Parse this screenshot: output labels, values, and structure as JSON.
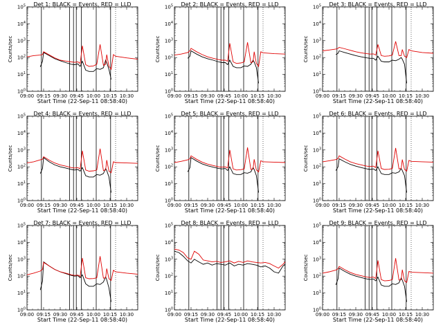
{
  "figure": {
    "x_tick_labels": [
      "09:00",
      "09:15",
      "09:30",
      "09:45",
      "10:00",
      "10:15",
      "10:30"
    ],
    "y_tick_labels": [
      "10^0",
      "10^1",
      "10^2",
      "10^3",
      "10^4",
      "10^5"
    ],
    "xlabel": "Start Time (22-Sep-11 08:58:40)",
    "ylabel": "Counts/sec",
    "series_colors": {
      "events": "#000000",
      "lld": "#e00000"
    }
  },
  "chart_data": [
    {
      "type": "line",
      "title": "Det 1: BLACK = Events, RED = LLD",
      "xlabel": "Start Time (22-Sep-11 08:58:40)",
      "ylabel": "Counts/sec",
      "y_scale": "log",
      "ylim": [
        1,
        100000
      ],
      "x": [
        0,
        6,
        12,
        14,
        15,
        20,
        25,
        30,
        35,
        40,
        43,
        46,
        48,
        50,
        53,
        56,
        60,
        63,
        66,
        69,
        71,
        72,
        74,
        76,
        78,
        80,
        90,
        100
      ],
      "series": [
        {
          "values": [
            null,
            null,
            28,
            60,
            200,
            130,
            85,
            65,
            50,
            40,
            38,
            42,
            30,
            60,
            18,
            15,
            15,
            22,
            20,
            25,
            70,
            50,
            20,
            5,
            null,
            null,
            null,
            null
          ]
        },
        {
          "values": [
            110,
            130,
            140,
            150,
            220,
            145,
            95,
            70,
            62,
            55,
            52,
            55,
            45,
            500,
            38,
            30,
            32,
            40,
            600,
            35,
            40,
            150,
            30,
            20,
            150,
            120,
            95,
            80
          ]
        }
      ]
    },
    {
      "type": "line",
      "title": "Det 2: BLACK = Events, RED = LLD",
      "xlabel": "Start Time (22-Sep-11 08:58:40)",
      "ylabel": "Counts/sec",
      "y_scale": "log",
      "ylim": [
        1,
        100000
      ],
      "x": [
        0,
        6,
        12,
        14,
        15,
        20,
        25,
        30,
        35,
        40,
        43,
        46,
        48,
        50,
        53,
        56,
        60,
        63,
        66,
        69,
        71,
        72,
        74,
        76,
        78,
        80,
        90,
        100
      ],
      "series": [
        {
          "values": [
            null,
            null,
            90,
            120,
            250,
            160,
            110,
            85,
            70,
            55,
            50,
            50,
            38,
            70,
            30,
            25,
            25,
            32,
            30,
            40,
            70,
            55,
            25,
            3,
            null,
            null,
            null,
            null
          ]
        },
        {
          "values": [
            140,
            160,
            200,
            250,
            350,
            220,
            150,
            110,
            90,
            75,
            70,
            70,
            60,
            700,
            55,
            45,
            48,
            55,
            800,
            50,
            55,
            220,
            45,
            30,
            220,
            190,
            170,
            160
          ]
        }
      ]
    },
    {
      "type": "line",
      "title": "Det 3: BLACK = Events, RED = LLD",
      "xlabel": "Start Time (22-Sep-11 08:58:40)",
      "ylabel": "Counts/sec",
      "y_scale": "log",
      "ylim": [
        1,
        100000
      ],
      "x": [
        0,
        6,
        12,
        14,
        15,
        20,
        25,
        30,
        35,
        40,
        43,
        46,
        48,
        50,
        53,
        56,
        60,
        63,
        66,
        69,
        71,
        72,
        74,
        76,
        78,
        80,
        90,
        100
      ],
      "series": [
        {
          "values": [
            null,
            null,
            150,
            180,
            250,
            200,
            160,
            130,
            110,
            95,
            90,
            90,
            70,
            120,
            60,
            55,
            55,
            70,
            65,
            80,
            100,
            80,
            40,
            3,
            null,
            null,
            null,
            null
          ]
        },
        {
          "values": [
            250,
            280,
            320,
            350,
            400,
            330,
            270,
            220,
            190,
            170,
            160,
            165,
            140,
            600,
            130,
            120,
            125,
            140,
            900,
            130,
            130,
            300,
            120,
            100,
            300,
            250,
            200,
            180
          ]
        }
      ]
    },
    {
      "type": "line",
      "title": "Det 4: BLACK = Events, RED = LLD",
      "xlabel": "Start Time (22-Sep-11 08:58:40)",
      "ylabel": "Counts/sec",
      "y_scale": "log",
      "ylim": [
        1,
        100000
      ],
      "x": [
        0,
        6,
        12,
        14,
        15,
        20,
        25,
        30,
        35,
        40,
        43,
        46,
        48,
        50,
        53,
        56,
        60,
        63,
        66,
        69,
        71,
        72,
        74,
        76,
        78,
        80,
        90,
        100
      ],
      "series": [
        {
          "values": [
            null,
            null,
            40,
            80,
            350,
            200,
            130,
            100,
            85,
            70,
            65,
            70,
            55,
            90,
            30,
            25,
            25,
            35,
            32,
            40,
            80,
            60,
            25,
            3,
            null,
            null,
            null,
            null
          ]
        },
        {
          "values": [
            170,
            200,
            260,
            280,
            400,
            250,
            170,
            130,
            110,
            90,
            85,
            90,
            75,
            900,
            65,
            55,
            58,
            65,
            1200,
            60,
            65,
            250,
            55,
            45,
            200,
            180,
            170,
            160
          ]
        }
      ]
    },
    {
      "type": "line",
      "title": "Det 5: BLACK = Events, RED = LLD",
      "xlabel": "Start Time (22-Sep-11 08:58:40)",
      "ylabel": "Counts/sec",
      "y_scale": "log",
      "ylim": [
        1,
        100000
      ],
      "x": [
        0,
        6,
        12,
        14,
        15,
        20,
        25,
        30,
        35,
        40,
        43,
        46,
        48,
        50,
        53,
        56,
        60,
        63,
        66,
        69,
        71,
        72,
        74,
        76,
        78,
        80,
        90,
        100
      ],
      "series": [
        {
          "values": [
            null,
            null,
            50,
            90,
            350,
            220,
            150,
            115,
            95,
            80,
            75,
            80,
            60,
            100,
            40,
            35,
            35,
            45,
            42,
            50,
            90,
            70,
            30,
            3,
            null,
            null,
            null,
            null
          ]
        },
        {
          "values": [
            180,
            210,
            260,
            300,
            450,
            280,
            190,
            145,
            120,
            100,
            95,
            100,
            85,
            1000,
            75,
            65,
            68,
            75,
            1400,
            70,
            75,
            280,
            65,
            50,
            230,
            200,
            190,
            180
          ]
        }
      ]
    },
    {
      "type": "line",
      "title": "Det 6: BLACK = Events, RED = LLD",
      "xlabel": "Start Time (22-Sep-11 08:58:40)",
      "ylabel": "Counts/sec",
      "y_scale": "log",
      "ylim": [
        1,
        100000
      ],
      "x": [
        0,
        6,
        12,
        14,
        15,
        20,
        25,
        30,
        35,
        40,
        43,
        46,
        48,
        50,
        53,
        56,
        60,
        63,
        66,
        69,
        71,
        72,
        74,
        76,
        78,
        80,
        90,
        100
      ],
      "series": [
        {
          "values": [
            null,
            null,
            60,
            100,
            300,
            200,
            140,
            110,
            90,
            75,
            70,
            75,
            60,
            100,
            40,
            35,
            35,
            45,
            42,
            50,
            80,
            60,
            30,
            3,
            null,
            null,
            null,
            null
          ]
        },
        {
          "values": [
            200,
            230,
            270,
            310,
            450,
            290,
            200,
            155,
            130,
            110,
            105,
            110,
            90,
            900,
            80,
            70,
            72,
            80,
            1300,
            75,
            80,
            270,
            70,
            55,
            240,
            210,
            200,
            190
          ]
        }
      ]
    },
    {
      "type": "line",
      "title": "Det 7: BLACK = Events, RED = LLD",
      "xlabel": "Start Time (22-Sep-11 08:58:40)",
      "ylabel": "Counts/sec",
      "y_scale": "log",
      "ylim": [
        1,
        100000
      ],
      "x": [
        0,
        6,
        12,
        14,
        15,
        20,
        25,
        30,
        35,
        40,
        43,
        46,
        48,
        50,
        53,
        56,
        60,
        63,
        66,
        69,
        71,
        72,
        74,
        76,
        78,
        80,
        90,
        100
      ],
      "series": [
        {
          "values": [
            null,
            null,
            15,
            50,
            700,
            400,
            250,
            180,
            140,
            110,
            100,
            105,
            80,
            120,
            35,
            25,
            25,
            35,
            32,
            45,
            90,
            60,
            20,
            3,
            null,
            null,
            null,
            null
          ]
        },
        {
          "values": [
            120,
            150,
            200,
            250,
            650,
            400,
            250,
            180,
            150,
            120,
            110,
            115,
            95,
            1200,
            80,
            70,
            72,
            80,
            1500,
            75,
            80,
            280,
            70,
            55,
            220,
            180,
            150,
            130
          ]
        }
      ]
    },
    {
      "type": "line",
      "title": "Det 8: BLACK = Events, RED = LLD",
      "xlabel": "Start Time (22-Sep-11 08:58:40)",
      "ylabel": "Counts/sec",
      "y_scale": "log",
      "ylim": [
        1,
        100000
      ],
      "x": [
        0,
        4,
        8,
        12,
        15,
        18,
        22,
        26,
        30,
        34,
        38,
        42,
        46,
        50,
        54,
        58,
        62,
        66,
        70,
        74,
        78,
        82,
        86,
        90,
        94,
        98,
        100
      ],
      "series": [
        {
          "values": [
            3000,
            2500,
            1500,
            800,
            600,
            1000,
            700,
            500,
            600,
            450,
            550,
            500,
            450,
            600,
            400,
            500,
            450,
            550,
            500,
            450,
            350,
            400,
            300,
            180,
            150,
            400,
            500
          ]
        },
        {
          "values": [
            4000,
            3500,
            2500,
            1200,
            1000,
            3000,
            2000,
            900,
            800,
            700,
            750,
            650,
            700,
            800,
            600,
            750,
            650,
            800,
            700,
            650,
            600,
            650,
            550,
            400,
            300,
            500,
            700
          ]
        }
      ]
    },
    {
      "type": "line",
      "title": "Det 9: BLACK = Events, RED = LLD",
      "xlabel": "Start Time (22-Sep-11 08:58:40)",
      "ylabel": "Counts/sec",
      "y_scale": "log",
      "ylim": [
        1,
        100000
      ],
      "x": [
        0,
        6,
        12,
        14,
        15,
        20,
        25,
        30,
        35,
        40,
        43,
        46,
        48,
        50,
        53,
        56,
        60,
        63,
        66,
        69,
        71,
        72,
        74,
        76,
        78,
        80,
        90,
        100
      ],
      "series": [
        {
          "values": [
            null,
            null,
            30,
            70,
            300,
            190,
            130,
            100,
            82,
            68,
            63,
            68,
            52,
            88,
            30,
            25,
            25,
            35,
            32,
            40,
            78,
            58,
            25,
            3,
            null,
            null,
            null,
            null
          ]
        },
        {
          "values": [
            150,
            180,
            230,
            270,
            380,
            240,
            165,
            125,
            105,
            88,
            83,
            88,
            72,
            850,
            62,
            52,
            55,
            62,
            1150,
            58,
            62,
            240,
            52,
            42,
            190,
            170,
            160,
            150
          ]
        }
      ]
    }
  ]
}
